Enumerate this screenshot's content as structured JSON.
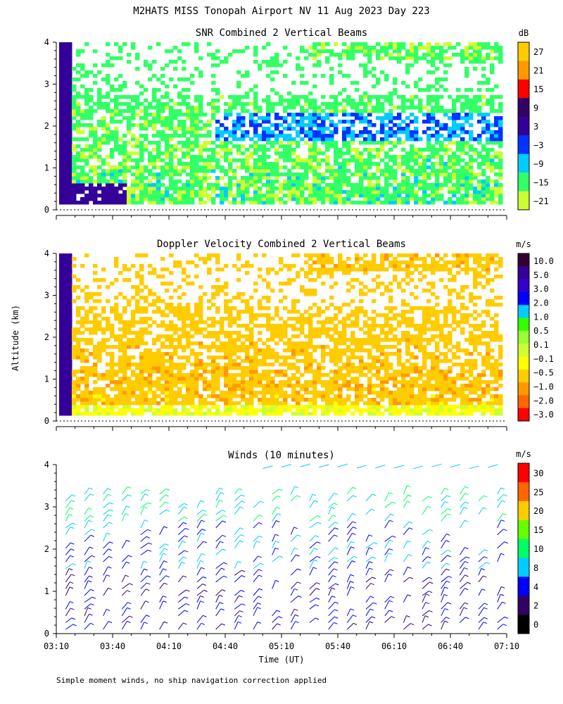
{
  "title": "M2HATS MISS Tonopah Airport NV  11 Aug 2023 Day 223",
  "note": "Simple moment winds, no ship navigation correction applied",
  "colors": {
    "snr_scale": [
      "#ccff33",
      "#33ff66",
      "#00ccff",
      "#0033ff",
      "#330099",
      "#330066",
      "#ff0000",
      "#ff9900",
      "#ffcc00"
    ],
    "vel_scale": [
      "#ff0000",
      "#ff6600",
      "#ff9900",
      "#ffcc00",
      "#ffff00",
      "#ccff33",
      "#99ff33",
      "#33ff00",
      "#00ccff",
      "#0000ff",
      "#3300cc",
      "#330099",
      "#330033"
    ],
    "wind_scale": [
      "#000000",
      "#330066",
      "#0000ff",
      "#00ccff",
      "#00ff66",
      "#66ff00",
      "#ffcc00",
      "#ff6600",
      "#ff0000"
    ]
  },
  "chart_data": [
    {
      "type": "heatmap",
      "title": "SNR Combined 2 Vertical Beams",
      "ylabel": "",
      "xlabel": "",
      "ylim": [
        0,
        4
      ],
      "yticks": [
        "0",
        "1",
        "2",
        "3",
        "4"
      ],
      "colorbar": {
        "unit": "dB",
        "labels": [
          "27",
          "21",
          "15",
          "9",
          "3",
          "−3",
          "−9",
          "−15",
          "−21"
        ]
      }
    },
    {
      "type": "heatmap",
      "title": "Doppler Velocity Combined 2 Vertical Beams",
      "ylabel": "Altitude (km)",
      "xlabel": "",
      "ylim": [
        0,
        4
      ],
      "yticks": [
        "0",
        "1",
        "2",
        "3",
        "4"
      ],
      "colorbar": {
        "unit": "m/s",
        "labels": [
          "10.0",
          "5.0",
          "3.0",
          "2.0",
          "1.0",
          "0.5",
          "0.1",
          "−0.1",
          "−0.5",
          "−1.0",
          "−2.0",
          "−3.0"
        ]
      }
    },
    {
      "type": "scatter",
      "title": "Winds (10 minutes)",
      "ylabel": "",
      "xlabel": "Time (UT)",
      "ylim": [
        0,
        4
      ],
      "yticks": [
        "0",
        "1",
        "2",
        "3",
        "4"
      ],
      "xticks": [
        "03:10",
        "03:40",
        "04:10",
        "04:40",
        "05:10",
        "05:40",
        "06:10",
        "06:40",
        "07:10"
      ],
      "colorbar": {
        "unit": "m/s",
        "labels": [
          "30",
          "25",
          "20",
          "15",
          "10",
          "8",
          "4",
          "2",
          "0"
        ]
      }
    }
  ]
}
